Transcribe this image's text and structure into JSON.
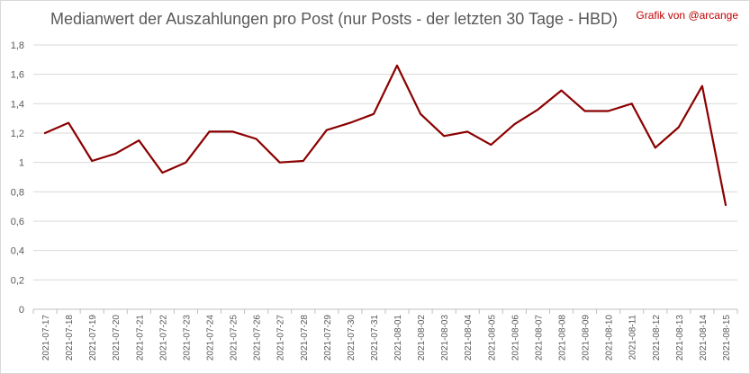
{
  "chart_data": {
    "type": "line",
    "title": "Medianwert der Auszahlungen pro Post (nur Posts - der letzten 30 Tage - HBD)",
    "credit": "Grafik von @arcange",
    "xlabel": "",
    "ylabel": "",
    "ylim": [
      0,
      1.8
    ],
    "yticks": [
      "0",
      "0,2",
      "0,4",
      "0,6",
      "0,8",
      "1",
      "1,2",
      "1,4",
      "1,6",
      "1,8"
    ],
    "grid": true,
    "legend": "none",
    "color": "#8b0000",
    "categories": [
      "2021-07-17",
      "2021-07-18",
      "2021-07-19",
      "2021-07-20",
      "2021-07-21",
      "2021-07-22",
      "2021-07-23",
      "2021-07-24",
      "2021-07-25",
      "2021-07-26",
      "2021-07-27",
      "2021-07-28",
      "2021-07-29",
      "2021-07-30",
      "2021-07-31",
      "2021-08-01",
      "2021-08-02",
      "2021-08-03",
      "2021-08-04",
      "2021-08-05",
      "2021-08-06",
      "2021-08-07",
      "2021-08-08",
      "2021-08-09",
      "2021-08-10",
      "2021-08-11",
      "2021-08-12",
      "2021-08-13",
      "2021-08-14",
      "2021-08-15"
    ],
    "values": [
      1.2,
      1.27,
      1.01,
      1.06,
      1.15,
      0.93,
      1.0,
      1.21,
      1.21,
      1.16,
      1.0,
      1.01,
      1.22,
      1.27,
      1.33,
      1.66,
      1.33,
      1.18,
      1.21,
      1.12,
      1.26,
      1.36,
      1.49,
      1.35,
      1.35,
      1.4,
      1.1,
      1.24,
      1.52,
      0.71
    ]
  }
}
